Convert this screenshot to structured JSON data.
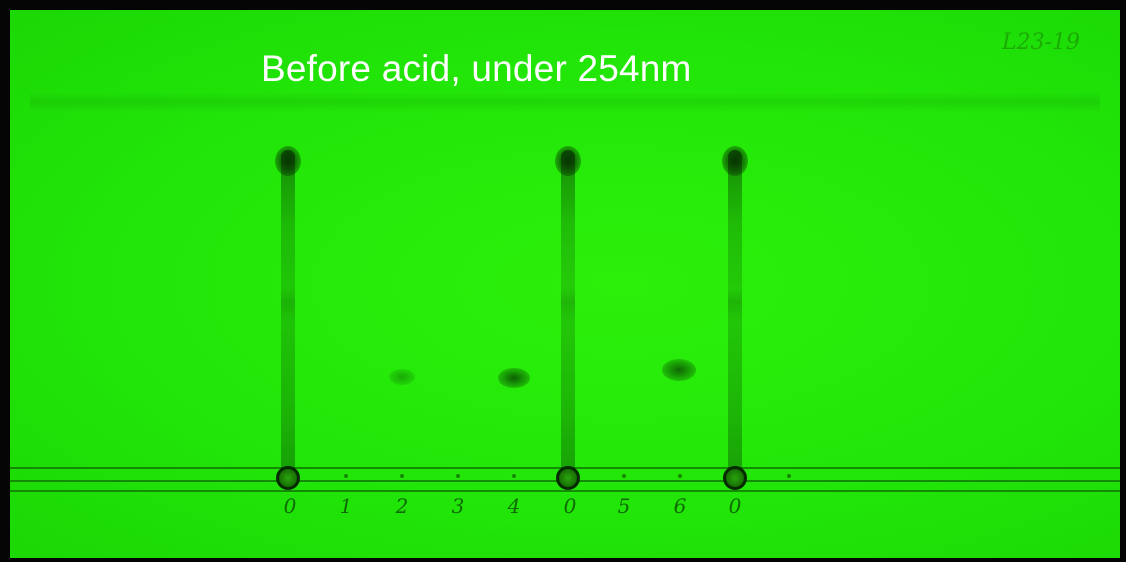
{
  "caption": "Before acid, under 254nm",
  "plate_id": "L23-19",
  "lane_labels": [
    "0",
    "1",
    "2",
    "3",
    "4",
    "0",
    "5",
    "6",
    "0"
  ]
}
